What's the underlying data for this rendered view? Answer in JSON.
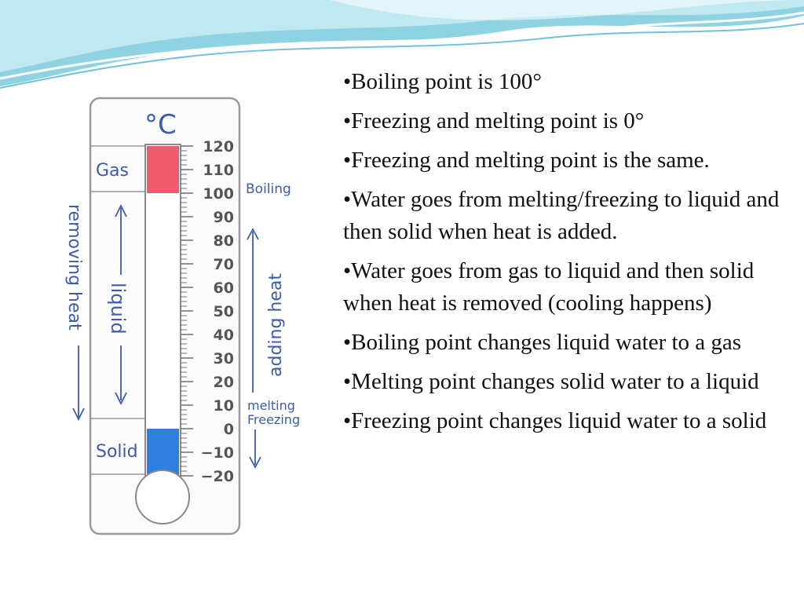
{
  "illustration": {
    "unit_label": "°C",
    "scale_min": -20,
    "scale_max": 120,
    "scale_labels": [
      "120",
      "110",
      "100",
      "90",
      "80",
      "70",
      "60",
      "50",
      "40",
      "30",
      "20",
      "10",
      "0",
      "−10",
      "−20"
    ],
    "zone_labels": {
      "gas": "Gas",
      "liquid": "liquid",
      "solid": "Solid"
    },
    "boiling_label": "Boiling",
    "melting_label": "melting",
    "freezing_label": "Freezing",
    "adding_heat_label": "adding heat",
    "removing_heat_label": "removing heat",
    "gas_range": [
      100,
      120
    ],
    "solid_range": [
      -20,
      0
    ],
    "colors": {
      "gas": "#f05a6e",
      "solid": "#2f7fe0",
      "ink": "#3b5cab"
    }
  },
  "bullets": [
    "•Boiling point is 100°",
    "•Freezing and melting point is 0°",
    "•Freezing and melting point is the same.",
    "•Water goes from melting/freezing to liquid and then solid when heat is added.",
    "•Water goes from gas to liquid and then solid when heat is removed (cooling happens)",
    "•Boiling point changes liquid water to a gas",
    "•Melting point changes solid water to a liquid",
    "•Freezing point changes liquid water to a solid"
  ]
}
